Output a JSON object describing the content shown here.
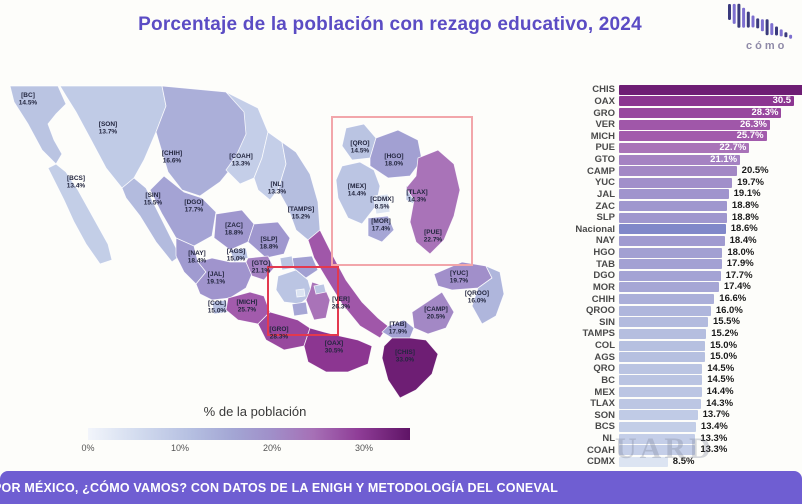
{
  "title": "Porcentaje de la población con rezago educativo, 2024",
  "logo": {
    "caption": "cómo"
  },
  "watermark": "UARD",
  "footer": {
    "text": "POR MÉXICO, ¿CÓMO VAMOS? CON DATOS DE LA ENIGH Y METODOLOGÍA DEL CONEVAL"
  },
  "legend": {
    "title": "% de la población",
    "min": 0,
    "max": 35,
    "ticks": [
      {
        "label": "0%",
        "value": 0
      },
      {
        "label": "10%",
        "value": 10
      },
      {
        "label": "20%",
        "value": 20
      },
      {
        "label": "30%",
        "value": 30
      }
    ]
  },
  "colors": {
    "title": "#5b4cc4",
    "footer_bg": "#6f5ed2",
    "nacional_bar": "#8088c9",
    "inset_box_border": "#f2a6aa",
    "highlight_box_border": "#e3394f",
    "map_label": "#23263f",
    "scale_stops": [
      [
        0,
        "#f4f6fb"
      ],
      [
        8.5,
        "#dce4f2"
      ],
      [
        13,
        "#c6d1e9"
      ],
      [
        15,
        "#b6c0e0"
      ],
      [
        17,
        "#a8abd7"
      ],
      [
        18.5,
        "#9f9ad0"
      ],
      [
        20,
        "#a18cc8"
      ],
      [
        21.5,
        "#a77fc0"
      ],
      [
        23,
        "#aa70b6"
      ],
      [
        26,
        "#a159ab"
      ],
      [
        28.5,
        "#97479d"
      ],
      [
        30.5,
        "#8c3691"
      ],
      [
        33,
        "#6e1e74"
      ],
      [
        35,
        "#5a1261"
      ]
    ]
  },
  "chart_data": {
    "type": "bar",
    "orientation": "horizontal",
    "title": "Porcentaje de la población con rezago educativo, 2024",
    "unit": "%",
    "xlim": [
      0,
      35
    ],
    "highlight_row": "Nacional",
    "rows": [
      {
        "label": "CHIS",
        "value": 33.0,
        "display": ""
      },
      {
        "label": "OAX",
        "value": 30.5,
        "display": "30.5"
      },
      {
        "label": "GRO",
        "value": 28.3,
        "display": "28.3%"
      },
      {
        "label": "VER",
        "value": 26.3,
        "display": "26.3%"
      },
      {
        "label": "MICH",
        "value": 25.7,
        "display": "25.7%"
      },
      {
        "label": "PUE",
        "value": 22.7,
        "display": "22.7%"
      },
      {
        "label": "GTO",
        "value": 21.1,
        "display": "21.1%"
      },
      {
        "label": "CAMP",
        "value": 20.5,
        "display": "20.5%"
      },
      {
        "label": "YUC",
        "value": 19.7,
        "display": "19.7%"
      },
      {
        "label": "JAL",
        "value": 19.1,
        "display": "19.1%"
      },
      {
        "label": "ZAC",
        "value": 18.8,
        "display": "18.8%"
      },
      {
        "label": "SLP",
        "value": 18.8,
        "display": "18.8%"
      },
      {
        "label": "Nacional",
        "value": 18.6,
        "display": "18.6%"
      },
      {
        "label": "NAY",
        "value": 18.4,
        "display": "18.4%"
      },
      {
        "label": "HGO",
        "value": 18.0,
        "display": "18.0%"
      },
      {
        "label": "TAB",
        "value": 17.9,
        "display": "17.9%"
      },
      {
        "label": "DGO",
        "value": 17.7,
        "display": "17.7%"
      },
      {
        "label": "MOR",
        "value": 17.4,
        "display": "17.4%"
      },
      {
        "label": "CHIH",
        "value": 16.6,
        "display": "16.6%"
      },
      {
        "label": "QROO",
        "value": 16.0,
        "display": "16.0%"
      },
      {
        "label": "SIN",
        "value": 15.5,
        "display": "15.5%"
      },
      {
        "label": "TAMPS",
        "value": 15.2,
        "display": "15.2%"
      },
      {
        "label": "COL",
        "value": 15.0,
        "display": "15.0%"
      },
      {
        "label": "AGS",
        "value": 15.0,
        "display": "15.0%"
      },
      {
        "label": "QRO",
        "value": 14.5,
        "display": "14.5%"
      },
      {
        "label": "BC",
        "value": 14.5,
        "display": "14.5%"
      },
      {
        "label": "MEX",
        "value": 14.4,
        "display": "14.4%"
      },
      {
        "label": "TLAX",
        "value": 14.3,
        "display": "14.3%"
      },
      {
        "label": "SON",
        "value": 13.7,
        "display": "13.7%"
      },
      {
        "label": "BCS",
        "value": 13.4,
        "display": "13.4%"
      },
      {
        "label": "NL",
        "value": 13.3,
        "display": "13.3%"
      },
      {
        "label": "COAH",
        "value": 13.3,
        "display": "13.3%"
      },
      {
        "label": "CDMX",
        "value": 8.5,
        "display": "8.5%"
      }
    ]
  },
  "map": {
    "states": [
      {
        "code": "BC",
        "value": 14.5
      },
      {
        "code": "SON",
        "value": 13.7
      },
      {
        "code": "CHIH",
        "value": 16.6
      },
      {
        "code": "COAH",
        "value": 13.3
      },
      {
        "code": "NL",
        "value": 13.3
      },
      {
        "code": "TAMPS",
        "value": 15.2
      },
      {
        "code": "BCS",
        "value": 13.4
      },
      {
        "code": "SIN",
        "value": 15.5
      },
      {
        "code": "DGO",
        "value": 17.7
      },
      {
        "code": "ZAC",
        "value": 18.8
      },
      {
        "code": "SLP",
        "value": 18.8
      },
      {
        "code": "NAY",
        "value": 18.4
      },
      {
        "code": "AGS",
        "value": 15.0
      },
      {
        "code": "JAL",
        "value": 19.1
      },
      {
        "code": "GTO",
        "value": 21.1
      },
      {
        "code": "COL",
        "value": 15.0
      },
      {
        "code": "MICH",
        "value": 25.7
      },
      {
        "code": "GRO",
        "value": 28.3
      },
      {
        "code": "VER",
        "value": 26.3
      },
      {
        "code": "OAX",
        "value": 30.5
      },
      {
        "code": "TAB",
        "value": 17.9
      },
      {
        "code": "CHIS",
        "value": 33.0
      },
      {
        "code": "CAMP",
        "value": 20.5
      },
      {
        "code": "YUC",
        "value": 19.7
      },
      {
        "code": "QROO",
        "value": 16.0
      }
    ],
    "inset_states": [
      {
        "code": "QRO",
        "value": 14.5
      },
      {
        "code": "HGO",
        "value": 18.0
      },
      {
        "code": "MEX",
        "value": 14.4
      },
      {
        "code": "CDMX",
        "value": 8.5
      },
      {
        "code": "TLAX",
        "value": 14.3
      },
      {
        "code": "MOR",
        "value": 17.4
      },
      {
        "code": "PUE",
        "value": 22.7
      }
    ],
    "central_unlabeled": [
      {
        "code": "MEX",
        "value": 14.4
      },
      {
        "code": "HGO",
        "value": 18.0
      },
      {
        "code": "QRO",
        "value": 14.5
      },
      {
        "code": "PUE",
        "value": 22.7
      },
      {
        "code": "MOR",
        "value": 17.4
      },
      {
        "code": "TLAX",
        "value": 14.3
      },
      {
        "code": "CDMX",
        "value": 8.5
      }
    ]
  }
}
